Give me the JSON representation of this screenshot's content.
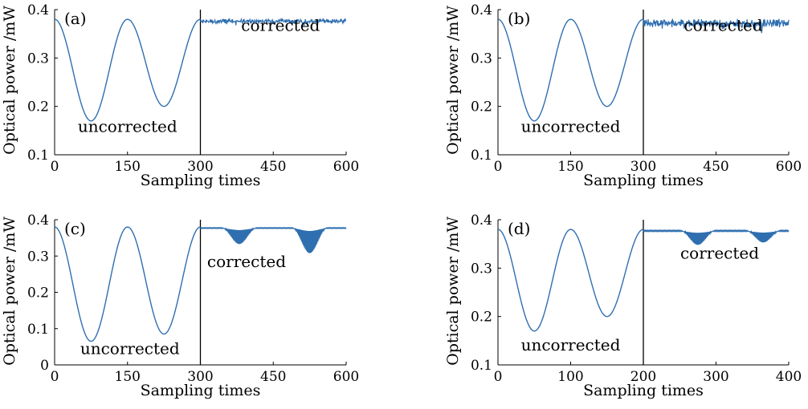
{
  "chart_data": [
    {
      "type": "line",
      "panel_label": "(a)",
      "xlabel": "Sampling times",
      "ylabel": "Optical power /mW",
      "xlim": [
        0,
        600
      ],
      "ylim": [
        0.1,
        0.4
      ],
      "x_ticks": [
        "0",
        "150",
        "300",
        "450",
        "600"
      ],
      "y_ticks": [
        "0.1",
        "0.2",
        "0.3",
        "0.4"
      ],
      "divider_x": 300,
      "annotations": [
        {
          "text": "uncorrected",
          "x": 150,
          "y": 0.147
        },
        {
          "text": "corrected",
          "x": 465,
          "y": 0.356
        }
      ],
      "series": [
        {
          "color": "#2f6fb0",
          "uncorrected": {
            "x_end": 300,
            "center": 0.28,
            "amp": 0.1,
            "period": 150,
            "start": 0.38,
            "min1": 0.17,
            "min2": 0.2
          },
          "corrected": {
            "level": 0.379,
            "ripple": 0.006,
            "dips": 0.012
          }
        }
      ]
    },
    {
      "type": "line",
      "panel_label": "(b)",
      "xlabel": "Sampling times",
      "ylabel": "Optical power /mW",
      "xlim": [
        0,
        600
      ],
      "ylim": [
        0.1,
        0.4
      ],
      "x_ticks": [
        "0",
        "150",
        "300",
        "450",
        "600"
      ],
      "y_ticks": [
        "0.1",
        "0.2",
        "0.3",
        "0.4"
      ],
      "divider_x": 300,
      "annotations": [
        {
          "text": "uncorrected",
          "x": 150,
          "y": 0.147
        },
        {
          "text": "corrected",
          "x": 465,
          "y": 0.356
        }
      ],
      "series": [
        {
          "color": "#2f6fb0",
          "uncorrected": {
            "x_end": 300,
            "min1": 0.17,
            "min2": 0.2,
            "start": 0.38
          },
          "corrected": {
            "level": 0.378,
            "ripple": 0.012,
            "dips": 0.025
          }
        }
      ]
    },
    {
      "type": "line",
      "panel_label": "(c)",
      "xlabel": "Sampling times",
      "ylabel": "Optical power /mW",
      "xlim": [
        0,
        600
      ],
      "ylim": [
        0,
        0.4
      ],
      "x_ticks": [
        "0",
        "150",
        "300",
        "450",
        "600"
      ],
      "y_ticks": [
        "0",
        "0.1",
        "0.2",
        "0.3",
        "0.4"
      ],
      "divider_x": 300,
      "annotations": [
        {
          "text": "uncorrected",
          "x": 155,
          "y": 0.03
        },
        {
          "text": "corrected",
          "x": 395,
          "y": 0.27
        }
      ],
      "series": [
        {
          "color": "#2f6fb0",
          "uncorrected": {
            "x_end": 300,
            "min1": 0.065,
            "min2": 0.085,
            "start": 0.38
          },
          "corrected": {
            "level": 0.378,
            "dip1": {
              "x": 380,
              "depth": 0.045
            },
            "dip2": {
              "x": 525,
              "depth": 0.07
            }
          }
        }
      ]
    },
    {
      "type": "line",
      "panel_label": "(d)",
      "xlabel": "Sampling times",
      "ylabel": "Optical power /mW",
      "xlim": [
        0,
        400
      ],
      "ylim": [
        0.1,
        0.4
      ],
      "x_ticks": [
        "0",
        "100",
        "200",
        "300",
        "400"
      ],
      "y_ticks": [
        "0.1",
        "0.2",
        "0.3",
        "0.4"
      ],
      "divider_x": 200,
      "annotations": [
        {
          "text": "uncorrected",
          "x": 100,
          "y": 0.13
        },
        {
          "text": "corrected",
          "x": 305,
          "y": 0.32
        }
      ],
      "series": [
        {
          "color": "#2f6fb0",
          "uncorrected": {
            "x_end": 200,
            "min1": 0.17,
            "min2": 0.2,
            "start": 0.38
          },
          "corrected": {
            "level": 0.378,
            "dip1": {
              "x": 275,
              "depth": 0.03
            },
            "dip2": {
              "x": 365,
              "depth": 0.025
            }
          }
        }
      ]
    }
  ]
}
